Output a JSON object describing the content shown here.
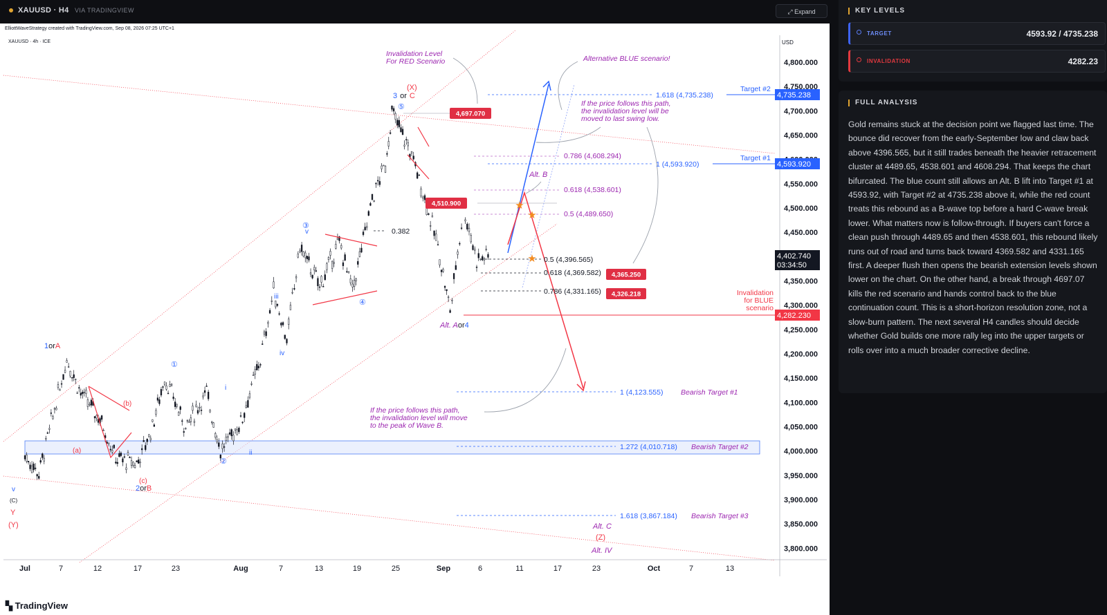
{
  "header": {
    "title": "XAUUSD · H4",
    "source": "VIA TRADINGVIEW",
    "expand_label": "Expand"
  },
  "chart": {
    "credit": "ElliottWaveStrategy created with TradingView.com, Sep 08, 2026 07:25 UTC+1",
    "symbol": "XAUUSD · 4h · ICE",
    "currency": "USD",
    "brand": "TradingView",
    "price_axis": [
      "4,800.000",
      "4,750.000",
      "4,700.000",
      "4,650.000",
      "4,600.000",
      "4,550.000",
      "4,500.000",
      "4,450.000",
      "4,400.000",
      "4,350.000",
      "4,300.000",
      "4,250.000",
      "4,200.000",
      "4,150.000",
      "4,100.000",
      "4,050.000",
      "4,000.000",
      "3,950.000",
      "3,900.000",
      "3,850.000",
      "3,800.000"
    ],
    "time_axis": [
      "Jul",
      "7",
      "12",
      "17",
      "23",
      "Aug",
      "7",
      "13",
      "19",
      "25",
      "Sep",
      "6",
      "11",
      "17",
      "23",
      "Oct",
      "7",
      "13"
    ],
    "axis_tags": {
      "target2": "4,735.238",
      "target1": "4,593.920",
      "last_price": "4,402.740",
      "countdown": "03:34:50",
      "invalidation": "4,282.230"
    },
    "price_labels": [
      "4,697.070",
      "4,510.900",
      "4,365.250",
      "4,326.218"
    ],
    "fib_levels": [
      "1.618 (4,735.238)",
      "1 (4,593.920)",
      "0.786 (4,608.294)",
      "0.618 (4,538.601)",
      "0.5 (4,489.650)",
      "0.5 (4,396.565)",
      "0.618 (4,369.582)",
      "0.786 (4,331.165)",
      "0.382",
      "1 (4,123.555)",
      "1.272 (4,010.718)",
      "1.618 (3,867.184)"
    ],
    "targets": [
      "Target #2",
      "Target #1",
      "Bearish Target #1",
      "Bearish Target #2",
      "Bearish Target #3"
    ],
    "notes": {
      "inv_red": [
        "Invalidation Level",
        "For RED Scenario"
      ],
      "alt_blue": "Alternative BLUE scenario!",
      "follow_up": [
        "If the price follows this path,",
        "the invalidation level will be",
        "moved to last swing low."
      ],
      "follow_down": [
        "If the price follows this path,",
        "the invalidation level will move",
        "to the peak of Wave B."
      ],
      "inv_blue": [
        "Invalidation",
        "for BLUE",
        "scenario"
      ]
    },
    "wave_labels": {
      "alt_b": "Alt. B",
      "alt_a_or_4": [
        "Alt. A",
        "or",
        "4"
      ],
      "alt_c": "Alt. C",
      "z": "(Z)",
      "alt_iv": "Alt. IV",
      "x": "(X)",
      "three_or_c": [
        "3",
        "or",
        "C"
      ],
      "one_or_a": [
        "1",
        "or",
        "A"
      ],
      "two_or_b": [
        "2",
        "or",
        "B"
      ],
      "a_small": "(a)",
      "b_small": "(b)",
      "c_small": "(c)",
      "c_cap": "(C)",
      "y": "Y",
      "y_paren": "(Y)",
      "v": "v",
      "iii": "iii",
      "iv": "iv",
      "i": "i",
      "ii": "ii",
      "c1": "①",
      "c2": "②",
      "c3": "③",
      "c4": "④",
      "c5": "⑤"
    },
    "series": {
      "name": "XAUUSD",
      "points": [
        [
          "Jul 1",
          3990
        ],
        [
          "Jul 3",
          3955
        ],
        [
          "Jul 7",
          4190
        ],
        [
          "Jul 9",
          4120
        ],
        [
          "Jul 12",
          4060
        ],
        [
          "Jul 14",
          3985
        ],
        [
          "Jul 17",
          3975
        ],
        [
          "Jul 19",
          4040
        ],
        [
          "Jul 21",
          4150
        ],
        [
          "Jul 24",
          4050
        ],
        [
          "Jul 27",
          4120
        ],
        [
          "Jul 29",
          4000
        ],
        [
          "Aug 1",
          4060
        ],
        [
          "Aug 4",
          4190
        ],
        [
          "Aug 6",
          4330
        ],
        [
          "Aug 8",
          4230
        ],
        [
          "Aug 10",
          4420
        ],
        [
          "Aug 13",
          4340
        ],
        [
          "Aug 16",
          4430
        ],
        [
          "Aug 18",
          4330
        ],
        [
          "Aug 21",
          4520
        ],
        [
          "Aug 23",
          4590
        ],
        [
          "Aug 24",
          4697
        ],
        [
          "Aug 27",
          4610
        ],
        [
          "Aug 29",
          4520
        ],
        [
          "Aug 31",
          4420
        ],
        [
          "Sep 2",
          4290
        ],
        [
          "Sep 4",
          4500
        ],
        [
          "Sep 6",
          4395
        ],
        [
          "Sep 8",
          4403
        ]
      ]
    }
  },
  "key_levels": {
    "title": "KEY LEVELS",
    "target_label": "TARGET",
    "target_value": "4593.92 / 4735.238",
    "invalidation_label": "INVALIDATION",
    "invalidation_value": "4282.23"
  },
  "analysis": {
    "title": "FULL ANALYSIS",
    "text": "Gold remains stuck at the decision point we flagged last time. The bounce did recover from the early-September low and claw back above 4396.565, but it still trades beneath the heavier retracement cluster at 4489.65, 4538.601 and 4608.294. That keeps the chart bifurcated. The blue count still allows an Alt. B lift into Target #1 at 4593.92, with Target #2 at 4735.238 above it, while the red count treats this rebound as a B-wave top before a hard C-wave break lower. What matters now is follow-through. If buyers can't force a clean push through 4489.65 and then 4538.601, this rebound likely runs out of road and turns back toward 4369.582 and 4331.165 first. A deeper flush then opens the bearish extension levels shown lower on the chart. On the other hand, a break through 4697.07 kills the red scenario and hands control back to the blue continuation count. This is a short-horizon resolution zone, not a slow-burn pattern. The next several H4 candles should decide whether Gold builds one more rally leg into the upper targets or rolls over into a much broader corrective decline."
  },
  "colors": {
    "accent": "#e0a431",
    "blue": "#2962ff",
    "red": "#f23645",
    "purple": "#9c27b0",
    "panel_bg": "#15171c"
  }
}
